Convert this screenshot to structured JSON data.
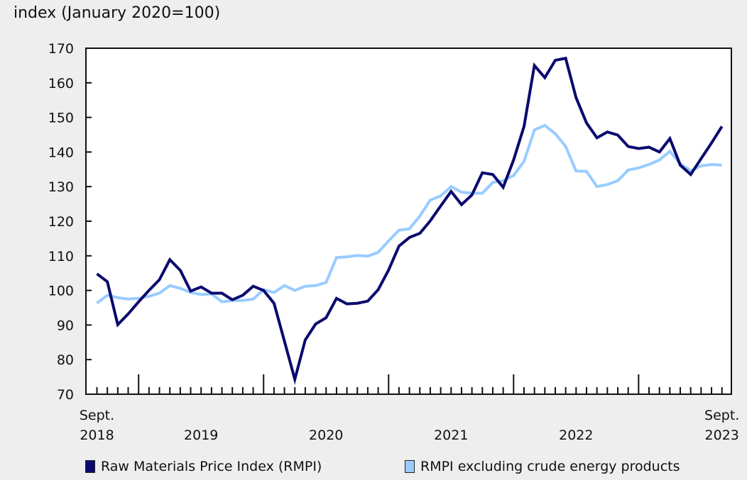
{
  "chart_data": {
    "type": "line",
    "title": "",
    "ylabel": "index (January 2020=100)",
    "xlabel": "",
    "ylim": [
      70,
      170
    ],
    "yticks": [
      70,
      80,
      90,
      100,
      110,
      120,
      130,
      140,
      150,
      160,
      170
    ],
    "grid": false,
    "legend_position": "bottom",
    "x_start": "Sept. 2018",
    "x_end": "Sept. 2023",
    "frequency": "monthly",
    "x_tick_labels": [
      {
        "line1": "Sept.",
        "line2": "2018",
        "month_index": 0
      },
      {
        "line1": "",
        "line2": "2019",
        "month_index": 10
      },
      {
        "line1": "",
        "line2": "2020",
        "month_index": 22
      },
      {
        "line1": "",
        "line2": "2021",
        "month_index": 34
      },
      {
        "line1": "",
        "line2": "2022",
        "month_index": 46
      },
      {
        "line1": "Sept.",
        "line2": "2023",
        "month_index": 60
      }
    ],
    "major_tick_month_indices": [
      4,
      16,
      28,
      40,
      52
    ],
    "series": [
      {
        "name": "Raw Materials Price Index (RMPI)",
        "color": "#0a0a6e",
        "values": [
          104.8,
          102.5,
          90.1,
          93.2,
          96.7,
          100.0,
          103.1,
          108.9,
          105.8,
          99.8,
          101.0,
          99.2,
          99.2,
          97.3,
          98.6,
          101.2,
          100.0,
          96.3,
          85.3,
          74.3,
          85.7,
          90.3,
          92.1,
          97.7,
          96.1,
          96.3,
          96.9,
          100.2,
          105.9,
          112.8,
          115.3,
          116.5,
          120.1,
          124.4,
          128.6,
          124.8,
          127.6,
          134.0,
          133.5,
          129.8,
          137.7,
          147.4,
          165.0,
          161.5,
          166.5,
          167.1,
          155.7,
          148.4,
          144.1,
          145.8,
          144.9,
          141.6,
          141.0,
          141.4,
          140.0,
          143.9,
          136.2,
          133.5,
          138.1,
          142.6,
          147.4
        ]
      },
      {
        "name": "RMPI excluding crude energy products",
        "color": "#99ccff",
        "values": [
          96.3,
          98.6,
          97.9,
          97.5,
          97.7,
          98.3,
          99.2,
          101.4,
          100.6,
          99.4,
          98.8,
          99.0,
          96.7,
          97.1,
          97.1,
          97.5,
          100.2,
          99.4,
          101.4,
          100.0,
          101.2,
          101.4,
          102.3,
          109.5,
          109.7,
          110.1,
          109.9,
          111.0,
          114.3,
          117.4,
          117.8,
          121.5,
          126.1,
          127.3,
          130.0,
          128.4,
          128.1,
          128.1,
          131.2,
          131.7,
          133.2,
          137.3,
          146.4,
          147.7,
          145.3,
          141.6,
          134.5,
          134.4,
          130.0,
          130.6,
          131.7,
          134.8,
          135.4,
          136.4,
          137.7,
          140.2,
          136.6,
          134.6,
          136.0,
          136.4,
          136.2
        ]
      }
    ]
  }
}
